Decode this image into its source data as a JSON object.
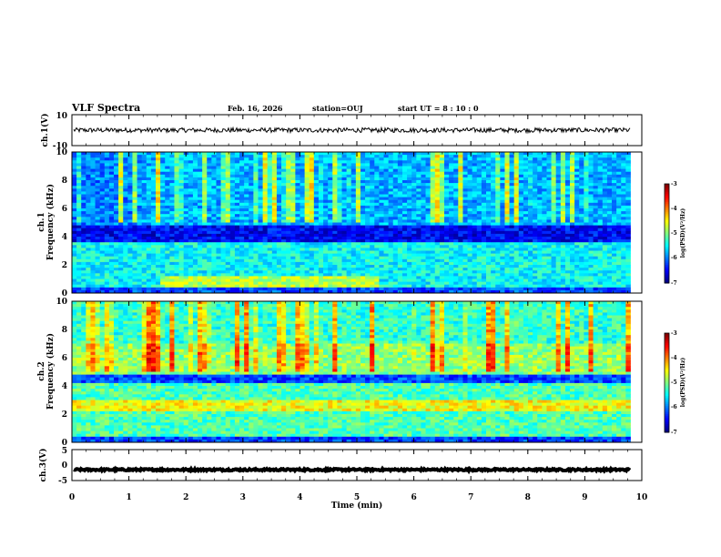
{
  "header": {
    "title": "VLF Spectra",
    "date": "Feb. 16, 2026",
    "station": "station=OUJ",
    "start": "start  UT =   8 : 10 : 0"
  },
  "chart_data": [
    {
      "type": "line",
      "name": "ch1-waveform",
      "ylabel": "ch.1(V)",
      "ylim": [
        -10,
        10
      ],
      "yticks": [
        "10",
        "-10"
      ],
      "xlim": [
        0,
        10
      ],
      "level": 0,
      "amplitude": 1.5
    },
    {
      "type": "heatmap",
      "name": "ch1-spectrogram",
      "ylabel_top": "ch.1",
      "ylabel": "Frequency (kHz)",
      "ylim": [
        0,
        10
      ],
      "yticks": [
        "0",
        "2",
        "4",
        "6",
        "8",
        "10"
      ],
      "xlim": [
        0,
        9.8
      ],
      "colorbar": {
        "label": "log(PSD)(V²/Hz)",
        "range": [
          -7,
          -3
        ],
        "ticks": [
          "-3",
          "-4",
          "-5",
          "-6",
          "-7"
        ]
      }
    },
    {
      "type": "heatmap",
      "name": "ch2-spectrogram",
      "ylabel_top": "ch.2",
      "ylabel": "Frequency (kHz)",
      "ylim": [
        0,
        10
      ],
      "yticks": [
        "0",
        "2",
        "4",
        "6",
        "8",
        "10"
      ],
      "xlim": [
        0,
        9.8
      ],
      "colorbar": {
        "label": "log(PSD)(V²/Hz)",
        "range": [
          -7,
          -3
        ],
        "ticks": [
          "-3",
          "-4",
          "-5",
          "-6",
          "-7"
        ]
      }
    },
    {
      "type": "line",
      "name": "ch3-waveform",
      "ylabel": "ch.3(V)",
      "ylim": [
        -5,
        5
      ],
      "yticks": [
        "5",
        "0",
        "-5"
      ],
      "xlim": [
        0,
        10
      ],
      "level": -1.5,
      "amplitude": 0.3
    }
  ],
  "xaxis": {
    "label": "Time (min)",
    "range": [
      0,
      10
    ],
    "ticks": [
      "0",
      "1",
      "2",
      "3",
      "4",
      "5",
      "6",
      "7",
      "8",
      "9",
      "10"
    ]
  }
}
